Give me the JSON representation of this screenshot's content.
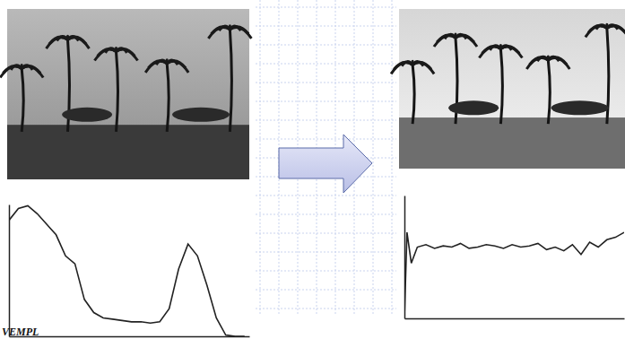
{
  "chart_data": [
    {
      "type": "line",
      "x": [
        0,
        10,
        20,
        30,
        40,
        50,
        60,
        70,
        80,
        90,
        100,
        110,
        120,
        130,
        140,
        150,
        160,
        170,
        180,
        190,
        200,
        210,
        220,
        230,
        240,
        250
      ],
      "values": [
        88,
        97,
        99,
        93,
        85,
        77,
        61,
        55,
        28,
        18,
        14,
        13,
        12,
        11,
        11,
        10,
        11,
        21,
        51,
        70,
        61,
        39,
        14,
        1,
        0,
        0
      ],
      "xlim": [
        0,
        255
      ],
      "ylim": [
        0,
        100
      ],
      "tick_labels": false,
      "color": "#222222"
    },
    {
      "type": "line",
      "x": [
        0,
        3,
        8,
        15,
        25,
        35,
        45,
        55,
        65,
        75,
        85,
        95,
        105,
        115,
        125,
        135,
        145,
        155,
        165,
        175,
        185,
        195,
        205,
        215,
        225,
        235,
        245,
        255
      ],
      "values": [
        0,
        70,
        45,
        58,
        60,
        57,
        59,
        58,
        61,
        57,
        58,
        60,
        59,
        57,
        60,
        58,
        59,
        61,
        56,
        58,
        55,
        60,
        52,
        62,
        58,
        64,
        66,
        70
      ],
      "xlim": [
        0,
        255
      ],
      "ylim": [
        0,
        100
      ],
      "tick_labels": false,
      "color": "#222222"
    }
  ],
  "watermark": "VEMPL"
}
